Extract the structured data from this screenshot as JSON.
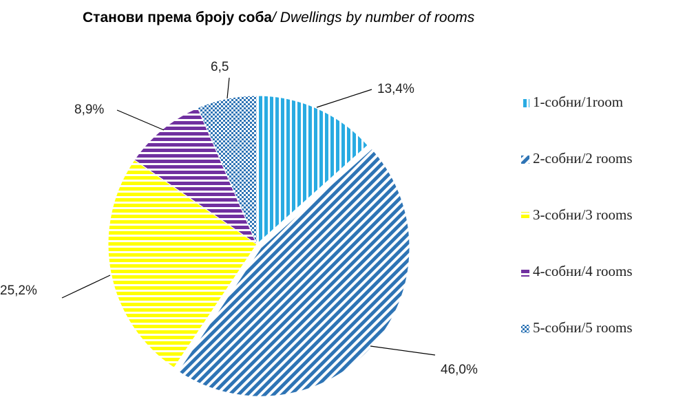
{
  "chart_data": {
    "type": "pie",
    "title": [
      "Станови према броју соба",
      "/ Dwellings by number of rooms"
    ],
    "categories": [
      "1-собни/1room",
      "2-собни/2 rooms",
      "3-собни/3 rooms",
      "4-собни/4 rooms",
      "5-собни/5 rooms"
    ],
    "values": [
      13.4,
      46.0,
      25.2,
      8.9,
      6.5
    ],
    "value_labels": [
      "13,4%",
      "46,0%",
      "25,2%",
      "8,9%",
      "6,5"
    ],
    "colors": [
      "#29abe2",
      "#2e74b5",
      "#ffff00",
      "#7030a0",
      "#2e74b5"
    ],
    "patterns": [
      "vertical",
      "diagonal",
      "horizontal",
      "horizontal",
      "checker"
    ],
    "legend": "right"
  }
}
